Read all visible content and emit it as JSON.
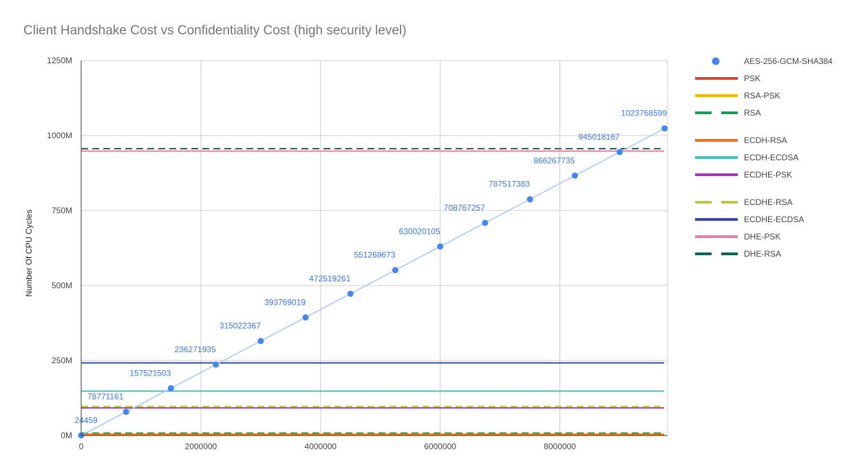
{
  "chart_data": {
    "type": "line",
    "title": "Client Handshake Cost vs Confidentiality Cost (high security level)",
    "ylabel": "Number Of CPU Cycles",
    "xlabel": "",
    "xlim": [
      0,
      9800000
    ],
    "ylim": [
      0,
      1250000000
    ],
    "x_ticks": [
      0,
      2000000,
      4000000,
      6000000,
      8000000
    ],
    "x_tick_labels": [
      "0",
      "2000000",
      "4000000",
      "6000000",
      "8000000"
    ],
    "y_ticks": [
      0,
      250000000,
      500000000,
      750000000,
      1000000000,
      1250000000
    ],
    "y_tick_labels": [
      "0M",
      "250M",
      "500M",
      "750M",
      "1000M",
      "1250M"
    ],
    "grid": true,
    "legend_position": "right",
    "scatter_series": {
      "name": "AES-256-GCM-SHA384",
      "color": "#4285f4",
      "trendline_color": "#a8c7fa",
      "x": [
        0,
        750000,
        1500000,
        2250000,
        3000000,
        3750000,
        4500000,
        5250000,
        6000000,
        6750000,
        7500000,
        8250000,
        9000000,
        9750000
      ],
      "y": [
        24459,
        78771161,
        157521503,
        236271935,
        315022367,
        393769019,
        472519261,
        551269673,
        630020105,
        708767257,
        787517383,
        866267735,
        945018167,
        1023768599
      ],
      "labels": [
        "24459",
        "78771161",
        "157521503",
        "236271935",
        "315022367",
        "393769019",
        "472519261",
        "551269673",
        "630020105",
        "708767257",
        "787517383",
        "866267735",
        "945018167",
        "1023768599"
      ]
    },
    "hline_series": [
      {
        "name": "PSK",
        "value": 1500000,
        "color": "#db4437",
        "dashed": false
      },
      {
        "name": "RSA-PSK",
        "value": 5000000,
        "color": "#f4b400",
        "dashed": false
      },
      {
        "name": "RSA",
        "value": 8000000,
        "color": "#0f9d58",
        "dashed": true
      },
      {
        "name": "ECDH-RSA",
        "value": 3000000,
        "color": "#ff6d00",
        "dashed": false
      },
      {
        "name": "ECDH-ECDSA",
        "value": 148000000,
        "color": "#46bdc6",
        "dashed": false
      },
      {
        "name": "ECDHE-PSK",
        "value": 92000000,
        "color": "#ab30c4",
        "dashed": false
      },
      {
        "name": "ECDHE-RSA",
        "value": 97000000,
        "color": "#c0ca33",
        "dashed": true
      },
      {
        "name": "ECDHE-ECDSA",
        "value": 242000000,
        "color": "#3949ab",
        "dashed": false
      },
      {
        "name": "DHE-PSK",
        "value": 948000000,
        "color": "#f07b9f",
        "dashed": false
      },
      {
        "name": "DHE-RSA",
        "value": 956000000,
        "color": "#12625a",
        "dashed": true
      }
    ]
  }
}
